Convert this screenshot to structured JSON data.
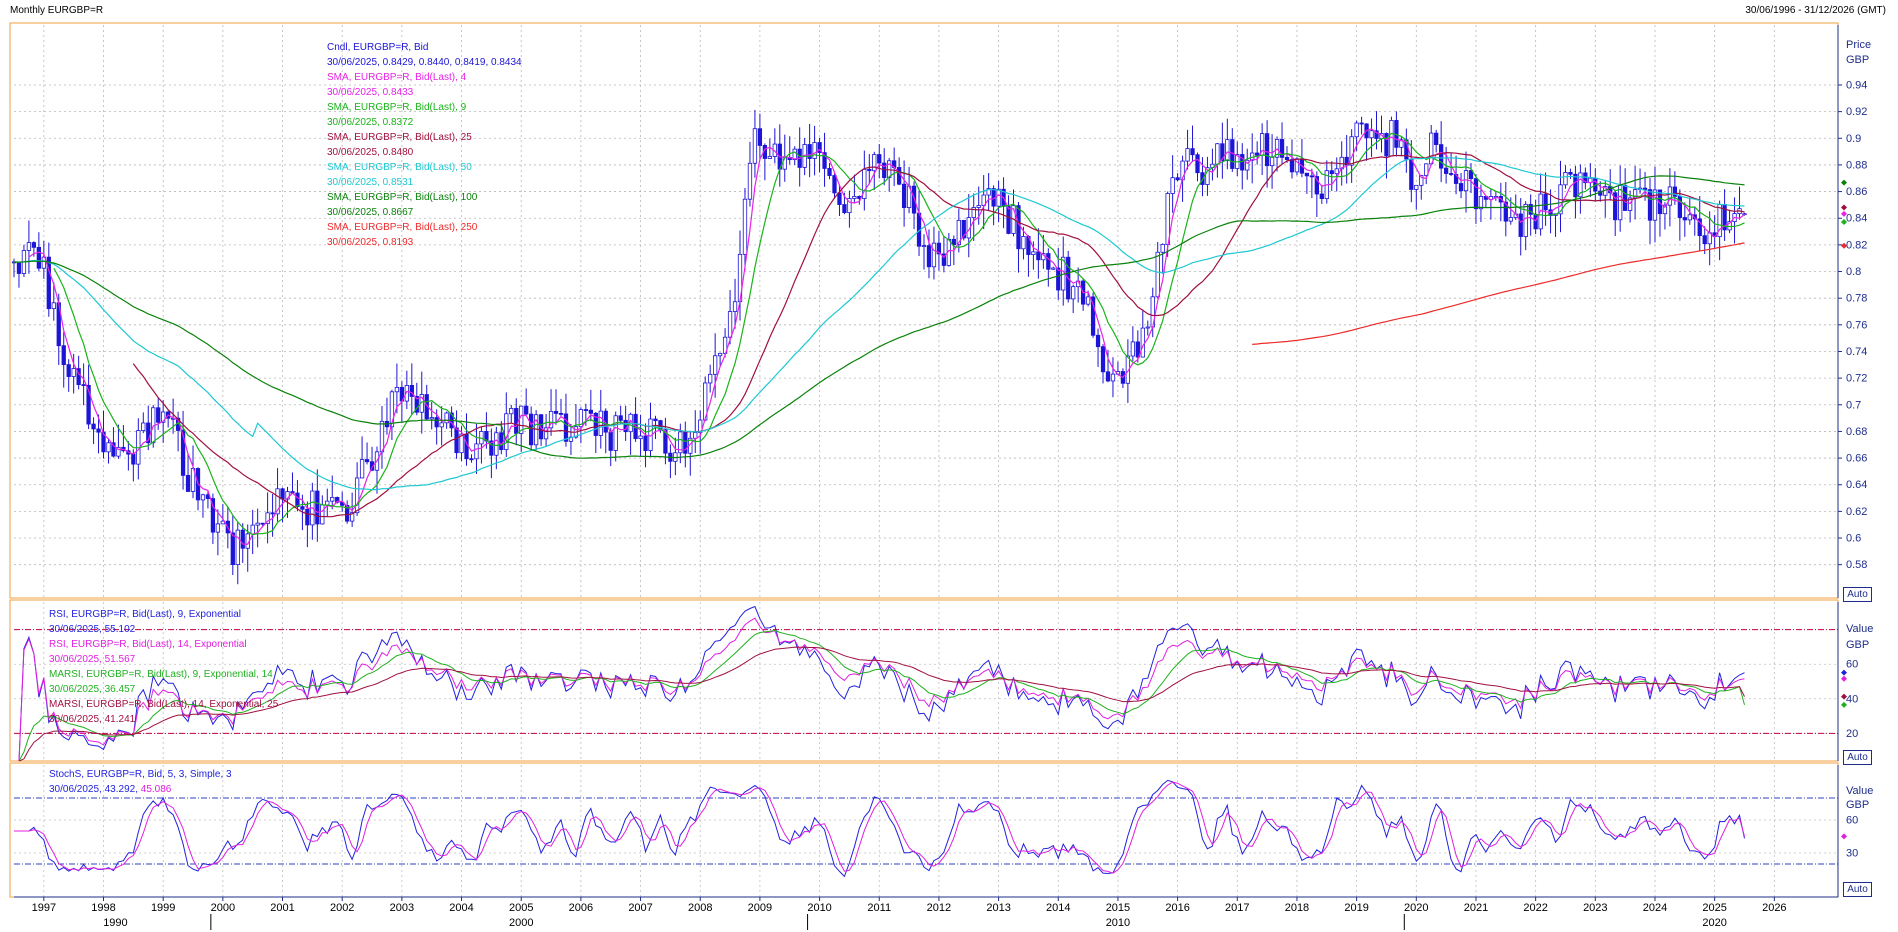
{
  "header": {
    "title": "Monthly EURGBP=R",
    "range": "30/06/1996 - 31/12/2026 (GMT)"
  },
  "colors": {
    "candle": "#1c14d6",
    "sma4": "#e623e6",
    "sma9": "#18b418",
    "sma25": "#a0103c",
    "sma50": "#1ec8d2",
    "sma100": "#0a820a",
    "sma250": "#ee2a2a",
    "rsi9": "#2222dd",
    "rsi14": "#e020e0",
    "marsi9": "#20b020",
    "marsi14": "#a01040",
    "stoch_k": "#2222dd",
    "stoch_d": "#e020e0",
    "panel_border": "#f0a040",
    "axis_text": "#1e2d8a",
    "level_line": "#c00040",
    "stoch_level": "#3040c0"
  },
  "price_panel": {
    "unit_labels": [
      "Price",
      "GBP"
    ],
    "auto": "Auto",
    "legend": [
      {
        "text": "Cndl, EURGBP=R, Bid",
        "color": "candle"
      },
      {
        "text": "30/06/2025, 0.8429, 0.8440, 0.8419, 0.8434",
        "color": "candle"
      },
      {
        "text": "SMA, EURGBP=R, Bid(Last),  4",
        "color": "sma4"
      },
      {
        "text": "30/06/2025, 0.8433",
        "color": "sma4"
      },
      {
        "text": "SMA, EURGBP=R, Bid(Last),  9",
        "color": "sma9"
      },
      {
        "text": "30/06/2025, 0.8372",
        "color": "sma9"
      },
      {
        "text": "SMA, EURGBP=R, Bid(Last),  25",
        "color": "sma25"
      },
      {
        "text": "30/06/2025, 0.8480",
        "color": "sma25"
      },
      {
        "text": "SMA, EURGBP=R, Bid(Last),  50",
        "color": "sma50"
      },
      {
        "text": "30/06/2025, 0.8531",
        "color": "sma50"
      },
      {
        "text": "SMA, EURGBP=R, Bid(Last),  100",
        "color": "sma100"
      },
      {
        "text": "30/06/2025, 0.8667",
        "color": "sma100"
      },
      {
        "text": "SMA, EURGBP=R, Bid(Last),  250",
        "color": "sma250"
      },
      {
        "text": "30/06/2025, 0.8193",
        "color": "sma250"
      }
    ]
  },
  "rsi_panel": {
    "unit_labels": [
      "Value",
      "GBP"
    ],
    "auto": "Auto",
    "legend": [
      {
        "text": "RSI, EURGBP=R, Bid(Last),  9, Exponential",
        "color": "rsi9"
      },
      {
        "text": "30/06/2025, 55.102",
        "color": "rsi9"
      },
      {
        "text": "RSI, EURGBP=R, Bid(Last),  14, Exponential",
        "color": "rsi14"
      },
      {
        "text": "30/06/2025, 51.567",
        "color": "rsi14"
      },
      {
        "text": "MARSI, EURGBP=R, Bid(Last),  9, Exponential, 14",
        "color": "marsi9"
      },
      {
        "text": "30/06/2025, 36.457",
        "color": "marsi9"
      },
      {
        "text": "MARSI, EURGBP=R, Bid(Last),  14, Exponential, 25",
        "color": "marsi14"
      },
      {
        "text": "30/06/2025, 41.241",
        "color": "marsi14"
      }
    ]
  },
  "stoch_panel": {
    "unit_labels": [
      "Value",
      "GBP"
    ],
    "auto": "Auto",
    "legend_line1": "StochS, EURGBP=R, Bid,  5, 3, Simple, 3",
    "legend_date": "30/06/2025, ",
    "legend_k": "43.292",
    "legend_sep": ", ",
    "legend_d": "45.086"
  },
  "chart_data": [
    {
      "type": "candlestick",
      "title": "Monthly EURGBP=R",
      "ylabel": "Price GBP",
      "xlim": [
        1996.5,
        2027.0
      ],
      "ylim": [
        0.555,
        0.985
      ],
      "yticks": [
        0.58,
        0.6,
        0.62,
        0.64,
        0.66,
        0.68,
        0.7,
        0.72,
        0.74,
        0.76,
        0.78,
        0.8,
        0.82,
        0.84,
        0.86,
        0.88,
        0.9,
        0.92,
        0.94
      ],
      "ytick_labels": [
        "0.58",
        "0.6",
        "0.62",
        "0.64",
        "0.66",
        "0.68",
        "0.7",
        "0.72",
        "0.74",
        "0.76",
        "0.78",
        "0.8",
        "0.82",
        "0.84",
        "0.86",
        "0.88",
        "0.9",
        "0.92",
        "0.94"
      ],
      "xticks": [
        1997,
        1998,
        1999,
        2000,
        2001,
        2002,
        2003,
        2004,
        2005,
        2006,
        2007,
        2008,
        2009,
        2010,
        2011,
        2012,
        2013,
        2014,
        2015,
        2016,
        2017,
        2018,
        2019,
        2020,
        2021,
        2022,
        2023,
        2024,
        2025,
        2026
      ],
      "xtick_labels": [
        "1997",
        "1998",
        "1999",
        "2000",
        "2001",
        "2002",
        "2003",
        "2004",
        "2005",
        "2006",
        "2007",
        "2008",
        "2009",
        "2010",
        "2011",
        "2012",
        "2013",
        "2014",
        "2015",
        "2016",
        "2017",
        "2018",
        "2019",
        "2020",
        "2021",
        "2022",
        "2023",
        "2024",
        "2025",
        "2026"
      ],
      "decade_labels": [
        {
          "x": 1998.2,
          "label": "1990"
        },
        {
          "x": 2005.0,
          "label": "2000"
        },
        {
          "x": 2015.0,
          "label": "2010"
        },
        {
          "x": 2025.0,
          "label": "2020"
        }
      ],
      "grid": true,
      "close_anchors": {
        "x": [
          1996.5,
          1996.9,
          1997.3,
          1997.7,
          1998.2,
          1998.6,
          1999.0,
          1999.3,
          1999.7,
          2000.2,
          2000.5,
          2000.8,
          2001.2,
          2001.6,
          2002.0,
          2002.4,
          2002.8,
          2003.2,
          2003.6,
          2004.0,
          2004.5,
          2004.9,
          2005.4,
          2005.9,
          2006.5,
          2007.1,
          2007.5,
          2007.9,
          2008.3,
          2008.6,
          2008.95,
          2009.3,
          2009.6,
          2010.0,
          2010.4,
          2010.8,
          2011.2,
          2011.6,
          2012.0,
          2012.4,
          2012.8,
          2013.2,
          2013.6,
          2014.0,
          2014.4,
          2014.8,
          2015.1,
          2015.5,
          2015.8,
          2016.1,
          2016.4,
          2016.7,
          2017.0,
          2017.4,
          2017.8,
          2018.2,
          2018.6,
          2019.0,
          2019.4,
          2019.7,
          2020.0,
          2020.3,
          2020.6,
          2021.0,
          2021.4,
          2021.8,
          2022.2,
          2022.6,
          2022.8,
          2023.0,
          2023.4,
          2023.8,
          2024.2,
          2024.6,
          2024.9,
          2025.2,
          2025.5
        ],
        "y": [
          0.81,
          0.82,
          0.74,
          0.7,
          0.66,
          0.67,
          0.7,
          0.66,
          0.62,
          0.59,
          0.61,
          0.62,
          0.63,
          0.62,
          0.62,
          0.65,
          0.7,
          0.7,
          0.69,
          0.67,
          0.67,
          0.69,
          0.68,
          0.69,
          0.68,
          0.68,
          0.67,
          0.68,
          0.73,
          0.79,
          0.91,
          0.88,
          0.88,
          0.89,
          0.84,
          0.87,
          0.88,
          0.84,
          0.8,
          0.83,
          0.86,
          0.84,
          0.81,
          0.8,
          0.78,
          0.73,
          0.72,
          0.76,
          0.84,
          0.88,
          0.87,
          0.89,
          0.88,
          0.89,
          0.89,
          0.86,
          0.87,
          0.9,
          0.9,
          0.9,
          0.86,
          0.9,
          0.88,
          0.86,
          0.85,
          0.84,
          0.85,
          0.87,
          0.87,
          0.86,
          0.85,
          0.85,
          0.85,
          0.84,
          0.83,
          0.84,
          0.843
        ]
      },
      "last_bar": {
        "date": "30/06/2025",
        "open": 0.8429,
        "high": 0.844,
        "low": 0.8419,
        "close": 0.8434
      },
      "sma_last": {
        "SMA 4": 0.8433,
        "SMA 9": 0.8372,
        "SMA 25": 0.848,
        "SMA 50": 0.8531,
        "SMA 100": 0.8667,
        "SMA 250": 0.8193
      }
    },
    {
      "type": "line",
      "title": "RSI / MARSI",
      "ylabel": "Value GBP",
      "ylim": [
        4,
        96
      ],
      "yticks": [
        20,
        40,
        60
      ],
      "ytick_labels": [
        "20",
        "40",
        "60"
      ],
      "level_lines": [
        20,
        80
      ],
      "series_last": {
        "RSI 9": 55.102,
        "RSI 14": 51.567,
        "MARSI 9": 36.457,
        "MARSI 14": 41.241
      }
    },
    {
      "type": "line",
      "title": "StochS",
      "ylabel": "Value GBP",
      "ylim": [
        -10,
        110
      ],
      "yticks": [
        30,
        60
      ],
      "ytick_labels": [
        "30",
        "60"
      ],
      "level_lines": [
        20,
        80
      ],
      "series_last": {
        "%K": 43.292,
        "%D": 45.086
      }
    }
  ]
}
